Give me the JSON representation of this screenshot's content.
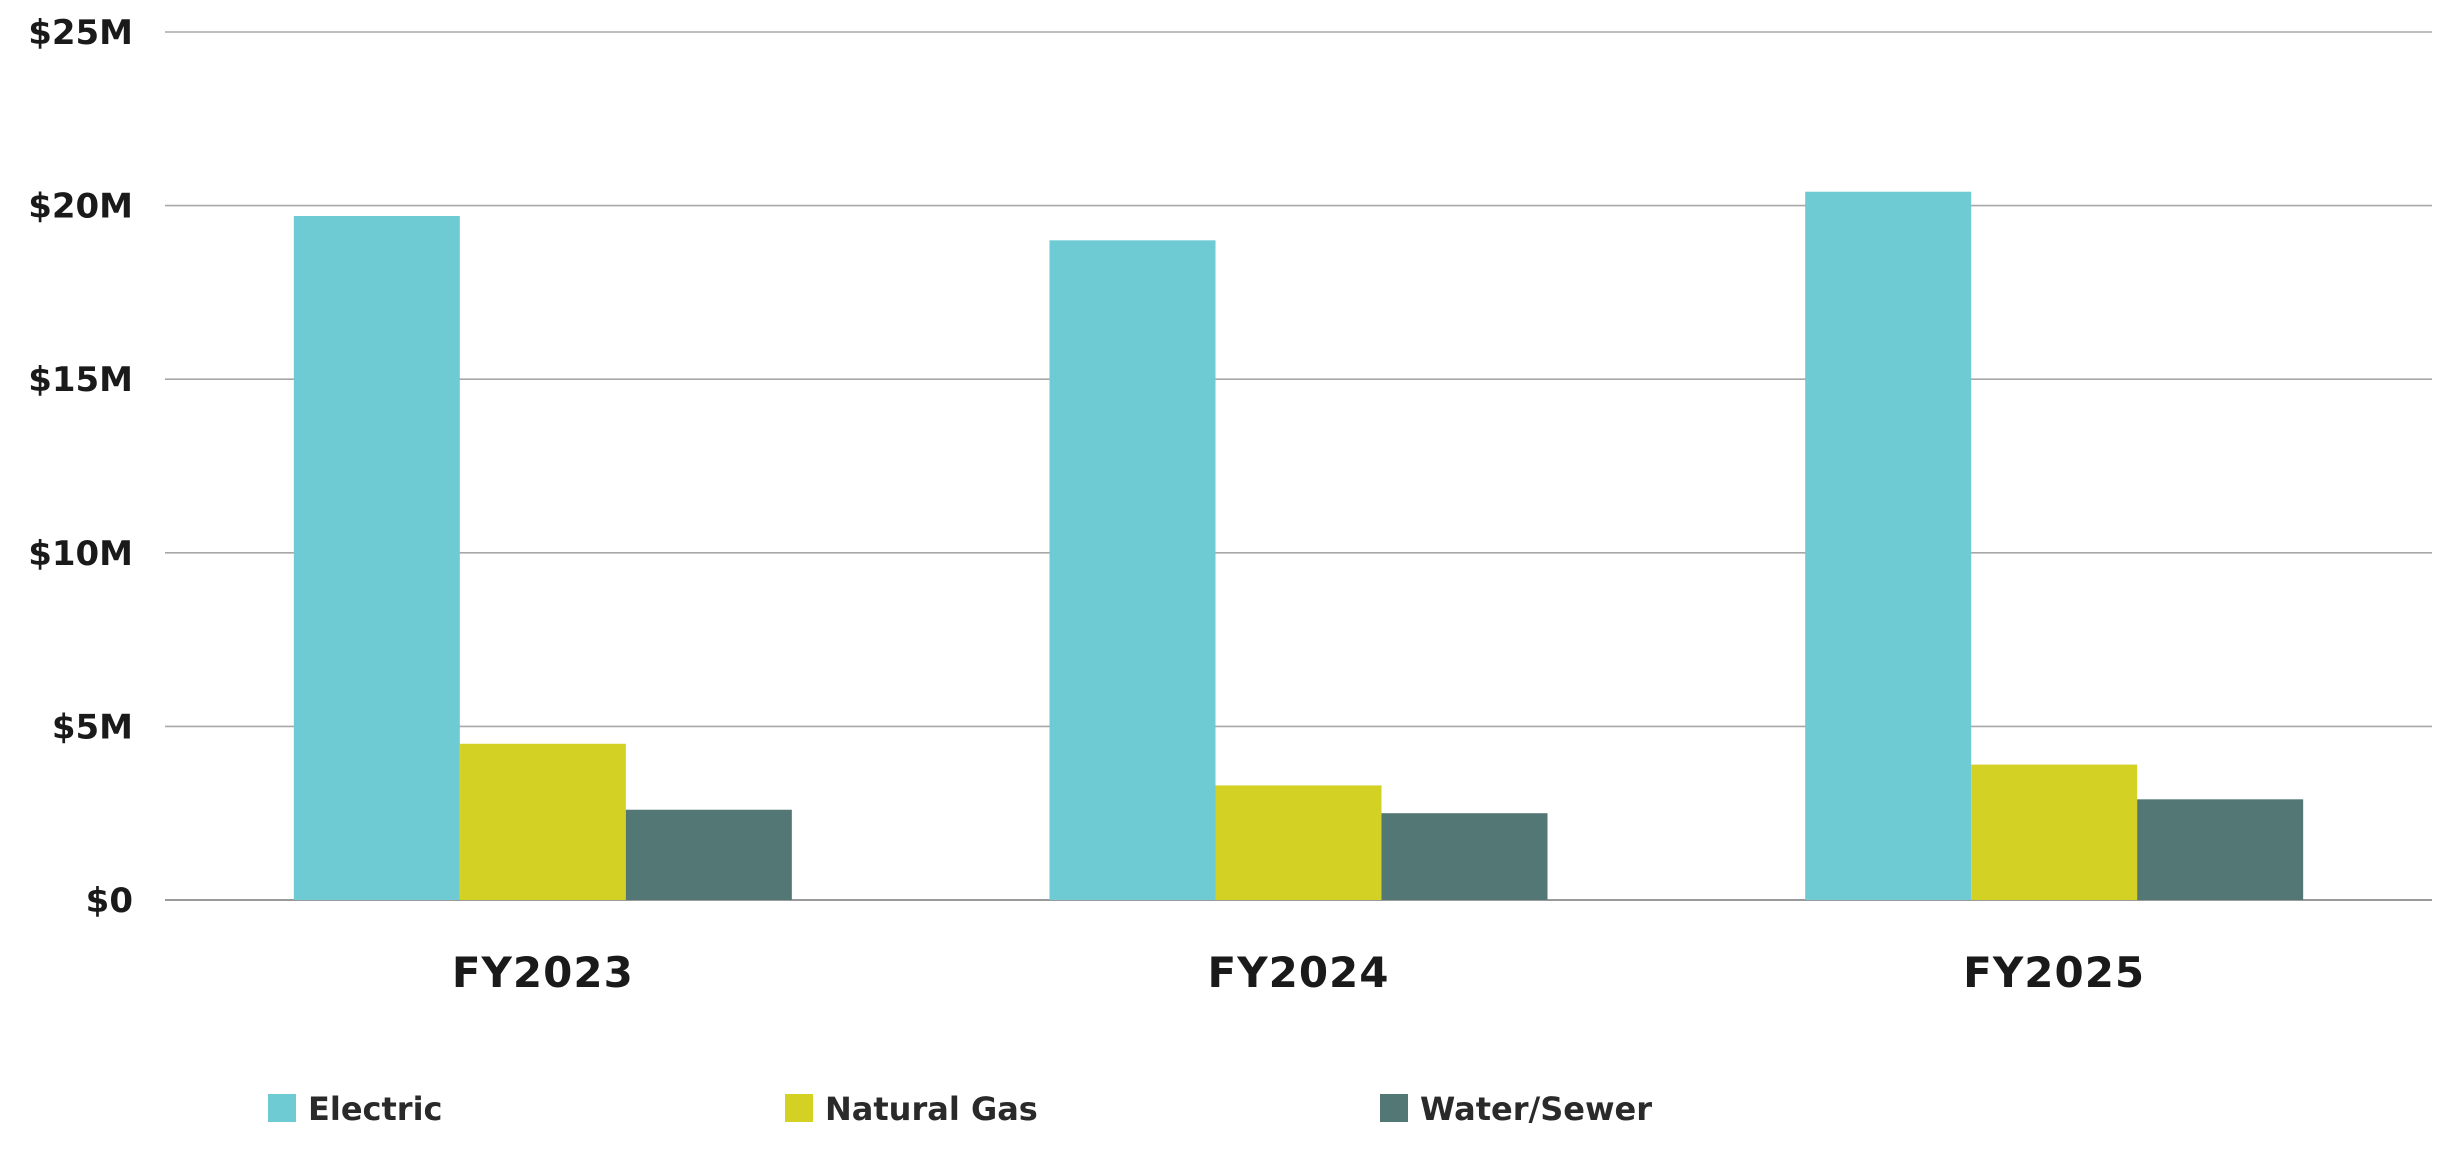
{
  "chart_data": {
    "type": "bar",
    "title": "",
    "xlabel": "",
    "ylabel": "",
    "categories": [
      "FY2023",
      "FY2024",
      "FY2025"
    ],
    "series": [
      {
        "name": "Electric",
        "color": "#6ecbd3",
        "values": [
          19.7,
          19.0,
          20.4
        ]
      },
      {
        "name": "Natural Gas",
        "color": "#d2d124",
        "values": [
          4.5,
          3.3,
          3.9
        ]
      },
      {
        "name": "Water/Sewer",
        "color": "#537775",
        "values": [
          2.6,
          2.5,
          2.9
        ]
      }
    ],
    "ylim": [
      0,
      25
    ],
    "yticks": [
      0,
      5,
      10,
      15,
      20,
      25
    ],
    "ytick_labels": [
      "$0",
      "$5M",
      "$10M",
      "$15M",
      "$20M",
      "$25M"
    ],
    "grid": true,
    "legend_position": "bottom"
  }
}
